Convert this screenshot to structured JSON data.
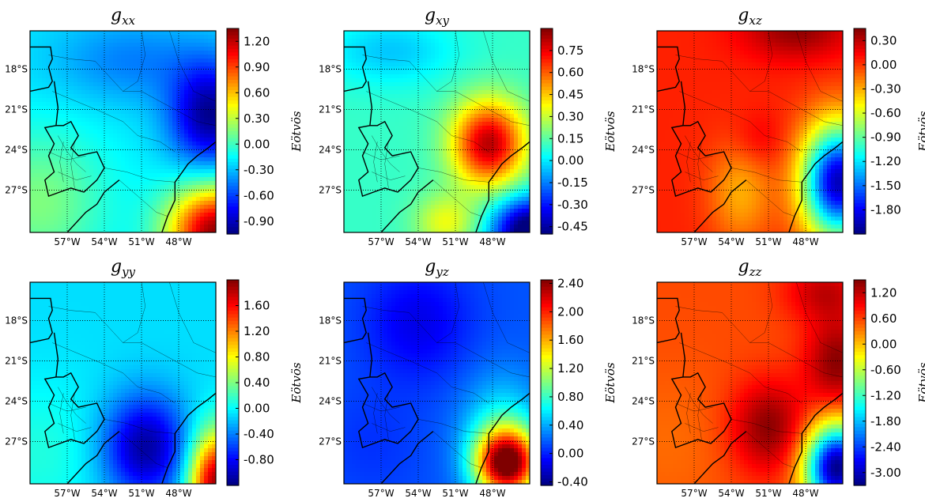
{
  "colors": {
    "colormap": "jet",
    "stops": [
      "#00007f",
      "#0000ff",
      "#007fff",
      "#00ffff",
      "#7fff7f",
      "#ffff00",
      "#ff7f00",
      "#ff0000",
      "#7f0000"
    ],
    "coastline": "#000000",
    "gridline": "#000000"
  },
  "chart_data": [
    {
      "type": "heatmap",
      "title_base": "g",
      "title_sub": "xx",
      "colorbar_label": "Eötvös",
      "colorbar_ticks": [
        "1.20",
        "0.90",
        "0.60",
        "0.30",
        "0.00",
        "-0.30",
        "-0.60",
        "-0.90"
      ],
      "vrange": [
        -1.05,
        1.35
      ],
      "x_ticks": [
        "57°W",
        "54°W",
        "51°W",
        "48°W"
      ],
      "y_ticks": [
        "18°S",
        "21°S",
        "24°S",
        "27°S"
      ],
      "background": -0.2,
      "blobs": [
        {
          "cx": 0.97,
          "cy": 0.42,
          "sx": 0.15,
          "sy": 0.18,
          "amp": -0.8
        },
        {
          "cx": 0.55,
          "cy": 0.15,
          "sx": 0.3,
          "sy": 0.15,
          "amp": -0.25
        },
        {
          "cx": 1.0,
          "cy": 1.0,
          "sx": 0.18,
          "sy": 0.16,
          "amp": 1.5
        },
        {
          "cx": 0.05,
          "cy": 0.85,
          "sx": 0.25,
          "sy": 0.25,
          "amp": 0.35
        }
      ]
    },
    {
      "type": "heatmap",
      "title_base": "g",
      "title_sub": "xy",
      "colorbar_label": "Eötvös",
      "colorbar_ticks": [
        "0.75",
        "0.60",
        "0.45",
        "0.30",
        "0.15",
        "0.00",
        "-0.15",
        "-0.30",
        "-0.45"
      ],
      "vrange": [
        -0.5,
        0.9
      ],
      "x_ticks": [
        "57°W",
        "54°W",
        "51°W",
        "48°W"
      ],
      "y_ticks": [
        "18°S",
        "21°S",
        "24°S",
        "27°S"
      ],
      "background": 0.1,
      "blobs": [
        {
          "cx": 0.78,
          "cy": 0.56,
          "sx": 0.14,
          "sy": 0.15,
          "amp": 0.72
        },
        {
          "cx": 1.0,
          "cy": 1.0,
          "sx": 0.14,
          "sy": 0.12,
          "amp": -0.7
        },
        {
          "cx": 0.25,
          "cy": 0.1,
          "sx": 0.25,
          "sy": 0.12,
          "amp": -0.15
        },
        {
          "cx": 0.55,
          "cy": 0.95,
          "sx": 0.12,
          "sy": 0.1,
          "amp": 0.25
        }
      ]
    },
    {
      "type": "heatmap",
      "title_base": "g",
      "title_sub": "xz",
      "colorbar_label": "Eötvös",
      "colorbar_ticks": [
        "0.30",
        "0.00",
        "-0.30",
        "-0.60",
        "-0.90",
        "-1.20",
        "-1.50",
        "-1.80"
      ],
      "vrange": [
        -2.1,
        0.45
      ],
      "x_ticks": [
        "57°W",
        "54°W",
        "51°W",
        "48°W"
      ],
      "y_ticks": [
        "18°S",
        "21°S",
        "24°S",
        "27°S"
      ],
      "background": 0.05,
      "blobs": [
        {
          "cx": 0.75,
          "cy": 0.0,
          "sx": 0.2,
          "sy": 0.1,
          "amp": 0.35
        },
        {
          "cx": 0.98,
          "cy": 0.75,
          "sx": 0.14,
          "sy": 0.2,
          "amp": -2.0
        },
        {
          "cx": 0.45,
          "cy": 0.8,
          "sx": 0.12,
          "sy": 0.18,
          "amp": -0.35
        },
        {
          "cx": 0.55,
          "cy": 0.55,
          "sx": 0.1,
          "sy": 0.1,
          "amp": 0.15
        }
      ]
    },
    {
      "type": "heatmap",
      "title_base": "g",
      "title_sub": "yy",
      "colorbar_label": "Eötvös",
      "colorbar_ticks": [
        "1.60",
        "1.20",
        "0.80",
        "0.40",
        "0.00",
        "-0.40",
        "-0.80"
      ],
      "vrange": [
        -1.2,
        2.0
      ],
      "x_ticks": [
        "57°W",
        "54°W",
        "51°W",
        "48°W"
      ],
      "y_ticks": [
        "18°S",
        "21°S",
        "24°S",
        "27°S"
      ],
      "background": -0.1,
      "blobs": [
        {
          "cx": 0.62,
          "cy": 0.82,
          "sx": 0.16,
          "sy": 0.18,
          "amp": -1.0
        },
        {
          "cx": 1.0,
          "cy": 1.0,
          "sx": 0.1,
          "sy": 0.18,
          "amp": 2.0
        },
        {
          "cx": 0.05,
          "cy": 0.85,
          "sx": 0.25,
          "sy": 0.25,
          "amp": 0.2
        }
      ]
    },
    {
      "type": "heatmap",
      "title_base": "g",
      "title_sub": "yz",
      "colorbar_label": "Eötvös",
      "colorbar_ticks": [
        "2.40",
        "2.00",
        "1.60",
        "1.20",
        "0.80",
        "0.40",
        "0.00",
        "-0.40"
      ],
      "vrange": [
        -0.45,
        2.45
      ],
      "x_ticks": [
        "57°W",
        "54°W",
        "51°W",
        "48°W"
      ],
      "y_ticks": [
        "18°S",
        "21°S",
        "24°S",
        "27°S"
      ],
      "background": 0.15,
      "blobs": [
        {
          "cx": 0.4,
          "cy": 0.2,
          "sx": 0.2,
          "sy": 0.2,
          "amp": -0.3
        },
        {
          "cx": 0.88,
          "cy": 0.9,
          "sx": 0.12,
          "sy": 0.12,
          "amp": 2.2
        },
        {
          "cx": 0.85,
          "cy": 0.75,
          "sx": 0.15,
          "sy": 0.2,
          "amp": 0.5
        },
        {
          "cx": 0.15,
          "cy": 0.8,
          "sx": 0.2,
          "sy": 0.2,
          "amp": -0.1
        }
      ]
    },
    {
      "type": "heatmap",
      "title_base": "g",
      "title_sub": "zz",
      "colorbar_label": "Eötvös",
      "colorbar_ticks": [
        "1.20",
        "0.60",
        "0.00",
        "-0.60",
        "-1.20",
        "-1.80",
        "-2.40",
        "-3.00"
      ],
      "vrange": [
        -3.3,
        1.5
      ],
      "x_ticks": [
        "57°W",
        "54°W",
        "51°W",
        "48°W"
      ],
      "y_ticks": [
        "18°S",
        "21°S",
        "24°S",
        "27°S"
      ],
      "background": 0.55,
      "blobs": [
        {
          "cx": 0.6,
          "cy": 0.72,
          "sx": 0.14,
          "sy": 0.16,
          "amp": 0.9
        },
        {
          "cx": 0.97,
          "cy": 0.4,
          "sx": 0.12,
          "sy": 0.16,
          "amp": 0.9
        },
        {
          "cx": 0.9,
          "cy": 0.05,
          "sx": 0.15,
          "sy": 0.1,
          "amp": 0.6
        },
        {
          "cx": 0.97,
          "cy": 0.92,
          "sx": 0.12,
          "sy": 0.15,
          "amp": -3.8
        },
        {
          "cx": 0.05,
          "cy": 0.8,
          "sx": 0.25,
          "sy": 0.25,
          "amp": -0.15
        }
      ]
    }
  ]
}
